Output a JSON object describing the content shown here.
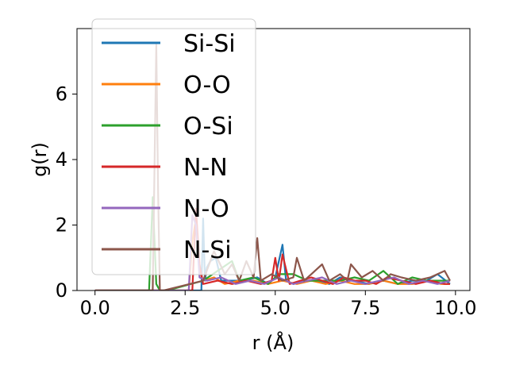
{
  "chart_data": {
    "type": "line",
    "title": "",
    "xlabel": "r (Å)",
    "ylabel": "g(r)",
    "xlim": [
      -0.5,
      10.4
    ],
    "ylim": [
      0,
      8.0
    ],
    "xticks": [
      0.0,
      2.5,
      5.0,
      7.5,
      10.0
    ],
    "xtick_labels": [
      "0.0",
      "2.5",
      "5.0",
      "7.5",
      "10.0"
    ],
    "yticks": [
      0,
      2,
      4,
      6
    ],
    "ytick_labels": [
      "0",
      "2",
      "4",
      "6"
    ],
    "grid": false,
    "legend_position": "upper-left",
    "series": [
      {
        "name": "Si-Si",
        "color": "#1f77b4",
        "x": [
          0.0,
          2.95,
          3.0,
          3.05,
          3.1,
          3.2,
          3.35,
          3.5,
          3.8,
          4.1,
          4.5,
          4.8,
          5.0,
          5.2,
          5.3,
          5.5,
          5.8,
          6.1,
          6.5,
          6.8,
          7.2,
          7.6,
          8.0,
          8.4,
          8.8,
          9.2,
          9.5,
          9.85
        ],
        "y": [
          0.0,
          0.0,
          2.2,
          0.3,
          0.7,
          0.9,
          1.0,
          0.3,
          0.3,
          0.3,
          0.4,
          0.2,
          0.4,
          1.4,
          0.3,
          0.2,
          0.3,
          0.3,
          0.2,
          0.4,
          0.3,
          0.2,
          0.3,
          0.2,
          0.3,
          0.3,
          0.5,
          0.2
        ]
      },
      {
        "name": "O-O",
        "color": "#ff7f0e",
        "x": [
          0.0,
          2.6,
          2.7,
          2.8,
          2.9,
          3.0,
          3.3,
          3.6,
          4.0,
          4.4,
          4.8,
          5.2,
          5.6,
          6.0,
          6.4,
          6.8,
          7.2,
          7.6,
          8.0,
          8.4,
          8.8,
          9.2,
          9.6,
          9.85
        ],
        "y": [
          0.0,
          0.0,
          1.5,
          2.2,
          0.6,
          0.3,
          0.4,
          0.2,
          0.3,
          0.3,
          0.2,
          0.3,
          0.2,
          0.3,
          0.2,
          0.3,
          0.2,
          0.2,
          0.3,
          0.2,
          0.2,
          0.3,
          0.2,
          0.2
        ]
      },
      {
        "name": "O-Si",
        "color": "#2ca02c",
        "x": [
          0.0,
          1.5,
          1.6,
          1.7,
          1.8,
          2.0,
          3.0,
          3.4,
          3.8,
          4.0,
          4.4,
          4.8,
          5.1,
          5.5,
          5.9,
          6.3,
          6.8,
          7.2,
          7.6,
          8.0,
          8.4,
          8.8,
          9.2,
          9.6,
          9.85
        ],
        "y": [
          0.0,
          0.0,
          2.85,
          0.2,
          0.0,
          0.0,
          0.3,
          0.6,
          0.9,
          0.3,
          0.4,
          0.2,
          0.5,
          0.5,
          0.3,
          0.3,
          0.3,
          0.4,
          0.3,
          0.6,
          0.2,
          0.4,
          0.3,
          0.3,
          0.3
        ]
      },
      {
        "name": "N-N",
        "color": "#d62728",
        "x": [
          0.0,
          2.7,
          2.8,
          2.9,
          3.0,
          3.4,
          3.8,
          4.2,
          4.6,
          4.9,
          5.0,
          5.1,
          5.2,
          5.4,
          5.7,
          6.0,
          6.3,
          6.6,
          6.9,
          7.2,
          7.5,
          7.8,
          8.1,
          8.5,
          8.9,
          9.3,
          9.7,
          9.85
        ],
        "y": [
          0.0,
          0.0,
          2.5,
          0.8,
          0.2,
          0.3,
          0.2,
          0.3,
          0.2,
          0.3,
          1.0,
          0.3,
          1.1,
          0.2,
          0.3,
          0.4,
          0.3,
          0.2,
          0.4,
          0.3,
          0.3,
          0.2,
          0.4,
          0.3,
          0.2,
          0.3,
          0.2,
          0.2
        ]
      },
      {
        "name": "N-O",
        "color": "#9467bd",
        "x": [
          0.0,
          2.6,
          2.7,
          2.8,
          2.9,
          3.1,
          3.5,
          3.9,
          4.3,
          4.7,
          5.1,
          5.5,
          5.9,
          6.3,
          6.7,
          7.1,
          7.5,
          7.9,
          8.3,
          8.7,
          9.1,
          9.5,
          9.85
        ],
        "y": [
          0.0,
          0.0,
          2.3,
          2.0,
          0.4,
          0.3,
          0.4,
          0.2,
          0.3,
          0.2,
          0.4,
          0.2,
          0.3,
          0.4,
          0.2,
          0.3,
          0.2,
          0.3,
          0.4,
          0.2,
          0.3,
          0.2,
          0.3
        ]
      },
      {
        "name": "N-Si",
        "color": "#8c564b",
        "x": [
          0.0,
          1.6,
          1.7,
          1.75,
          1.8,
          1.9,
          3.0,
          3.3,
          3.6,
          3.8,
          4.0,
          4.2,
          4.4,
          4.5,
          4.6,
          4.9,
          5.2,
          5.5,
          5.6,
          5.8,
          6.0,
          6.3,
          6.5,
          6.8,
          7.0,
          7.1,
          7.4,
          7.7,
          8.0,
          8.2,
          8.5,
          8.9,
          9.3,
          9.7,
          9.85
        ],
        "y": [
          0.0,
          0.0,
          7.5,
          3.0,
          0.0,
          0.0,
          0.3,
          1.2,
          0.5,
          0.8,
          0.3,
          0.9,
          0.4,
          1.6,
          0.3,
          0.5,
          0.3,
          0.4,
          1.0,
          0.3,
          0.5,
          0.8,
          0.3,
          0.5,
          0.3,
          0.8,
          0.4,
          0.6,
          0.3,
          0.5,
          0.4,
          0.3,
          0.4,
          0.6,
          0.3
        ]
      }
    ]
  }
}
